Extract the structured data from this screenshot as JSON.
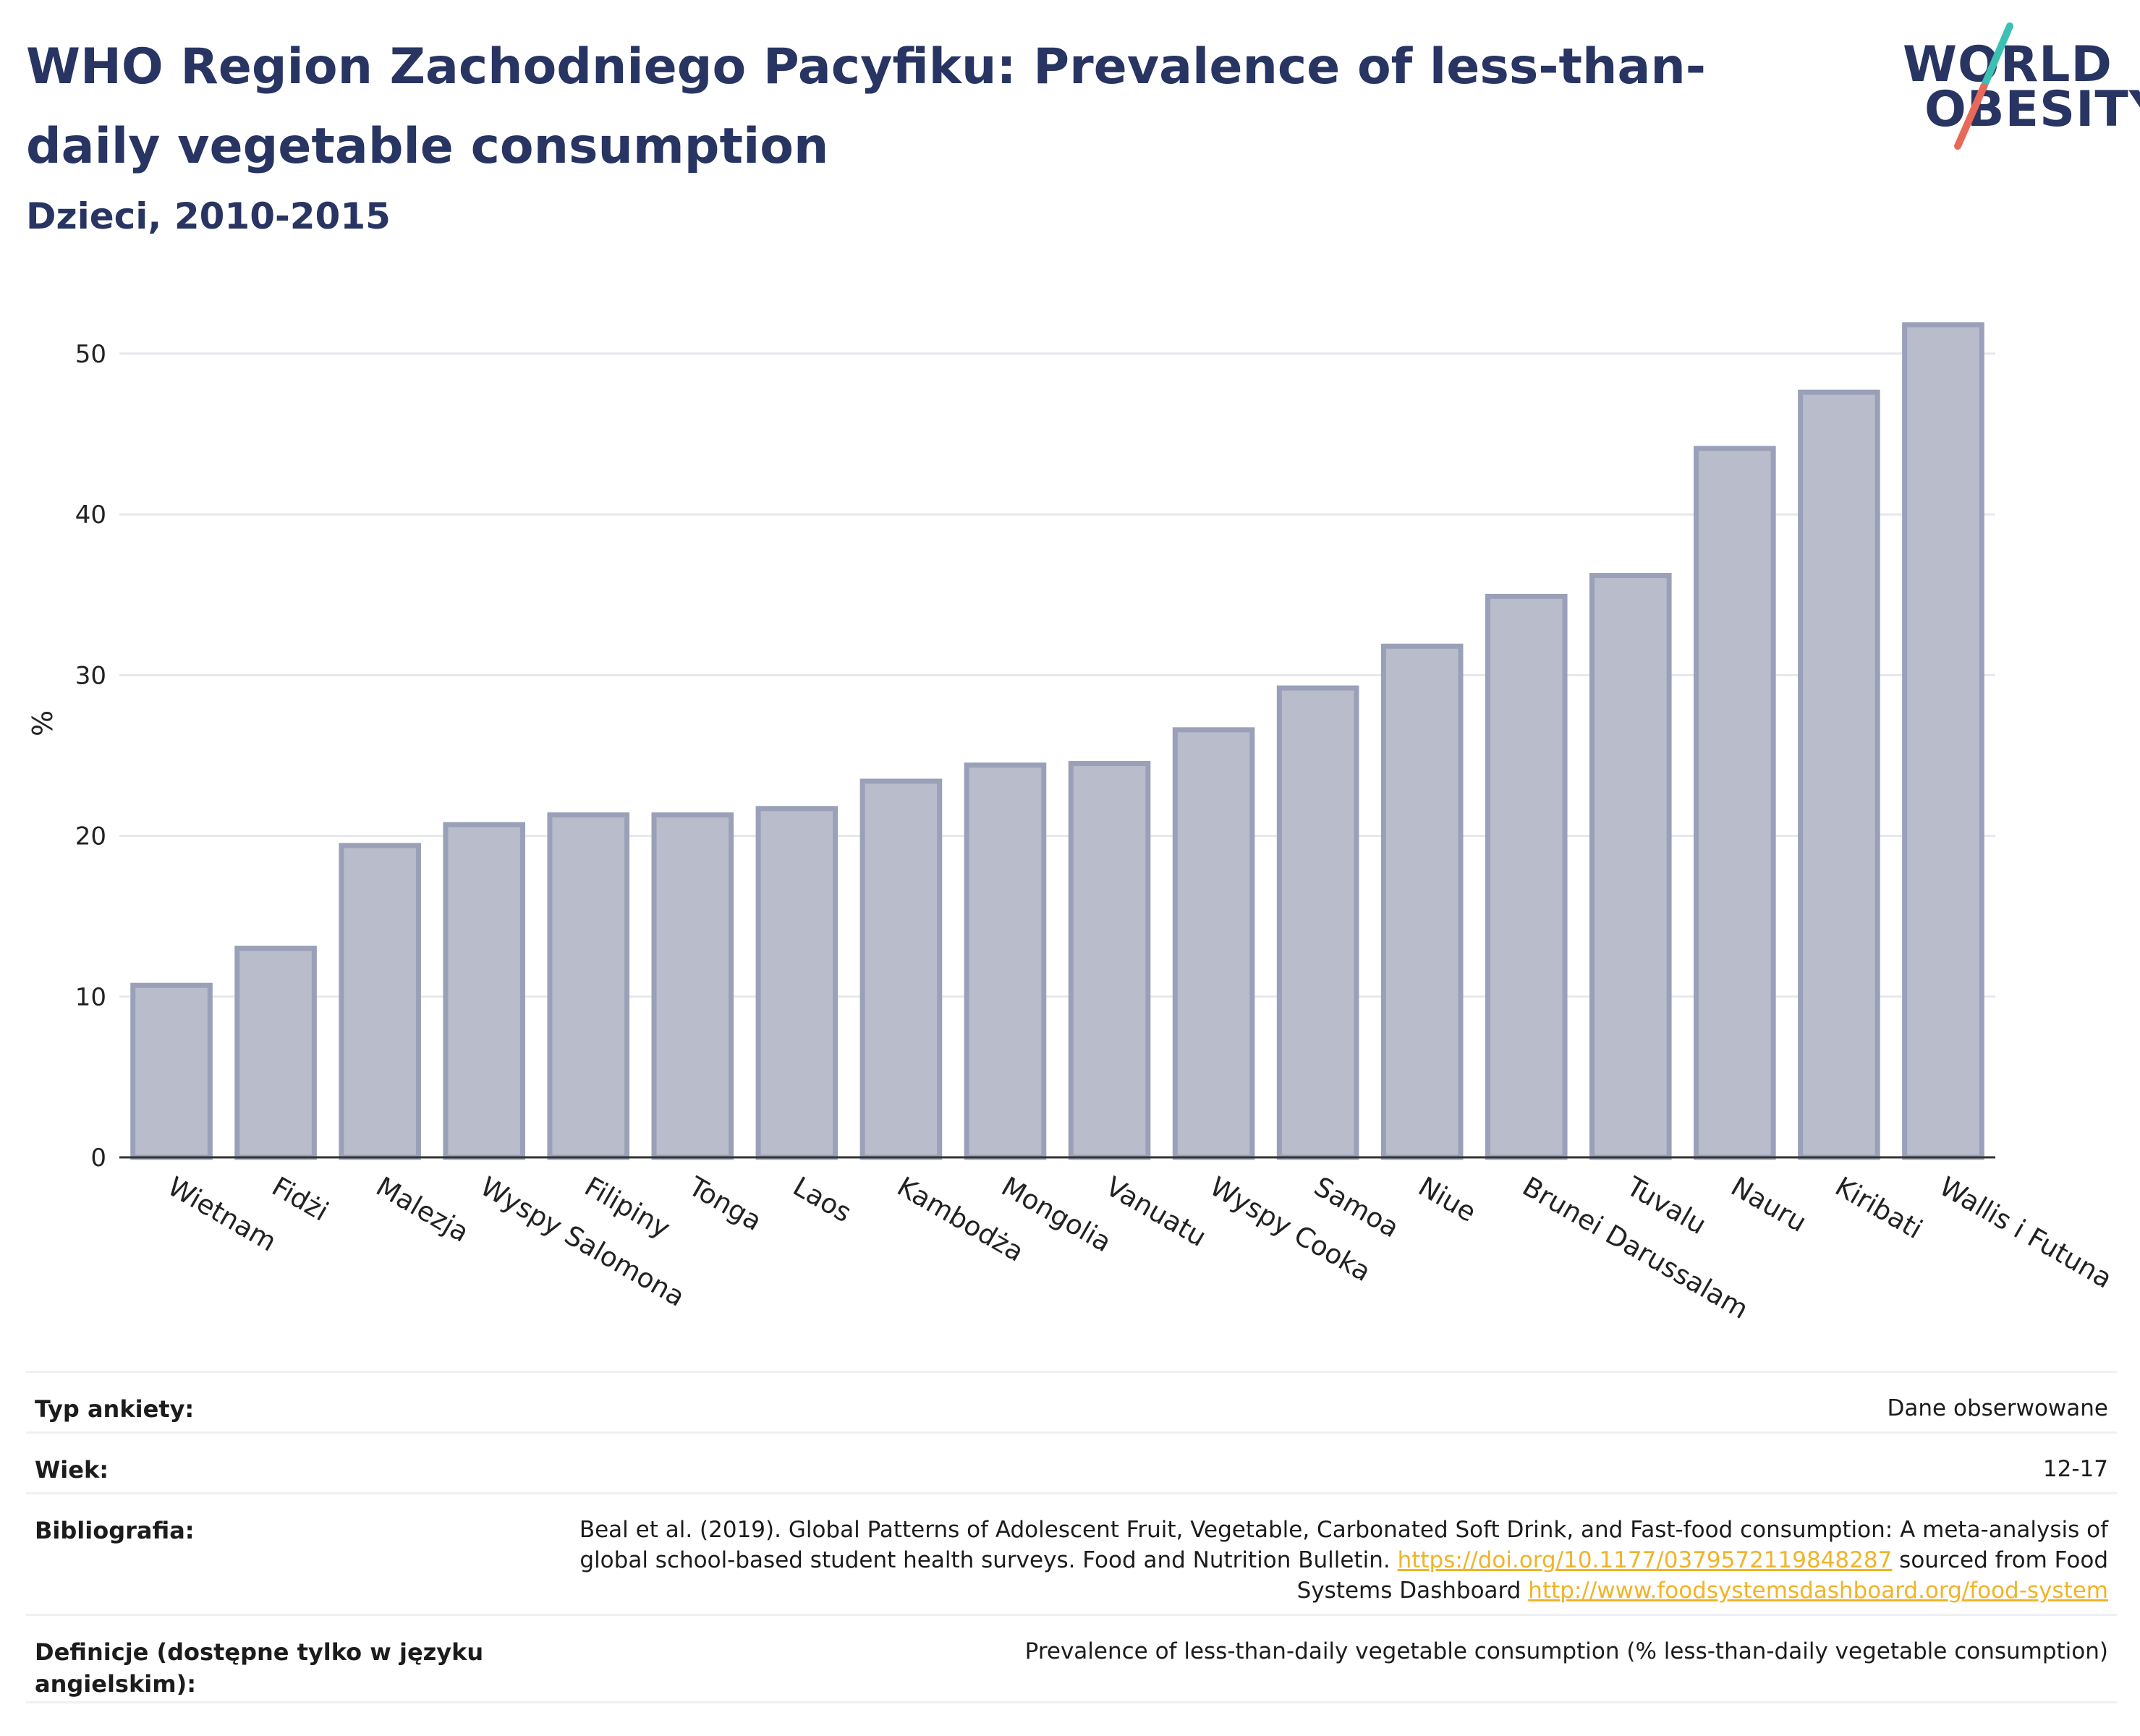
{
  "header": {
    "title": "WHO Region Zachodniego Pacyfiku: Prevalence of less-than-daily vegetable consumption",
    "subtitle": "Dzieci, 2010-2015"
  },
  "logo": {
    "line1": "WORLD",
    "line2": "OBESITY",
    "accent_teal": "#3cc0b4",
    "accent_red": "#e8695a"
  },
  "chart_data": {
    "type": "bar",
    "ylabel": "%",
    "ylim": [
      0,
      54
    ],
    "yticks": [
      0,
      10,
      20,
      30,
      40,
      50
    ],
    "grid": true,
    "bar_color": "#b8bccb",
    "bar_edge_color": "#9aa0b8",
    "categories": [
      "Wietnam",
      "Fidżi",
      "Malezja",
      "Wyspy Salomona",
      "Filipiny",
      "Tonga",
      "Laos",
      "Kambodża",
      "Mongolia",
      "Vanuatu",
      "Wyspy Cooka",
      "Samoa",
      "Niue",
      "Brunei Darussalam",
      "Tuvalu",
      "Nauru",
      "Kiribati",
      "Wallis i Futuna"
    ],
    "values": [
      10.7,
      13.0,
      19.4,
      20.7,
      21.3,
      21.3,
      21.7,
      23.4,
      24.4,
      24.5,
      26.6,
      29.2,
      31.8,
      34.9,
      36.2,
      44.1,
      47.6,
      51.8
    ]
  },
  "meta": [
    {
      "label": "Typ ankiety:",
      "value": "Dane obserwowane"
    },
    {
      "label": "Wiek:",
      "value": "12-17"
    },
    {
      "label": "Bibliografia:",
      "value_pre": "Beal et al. (2019). Global Patterns of Adolescent Fruit, Vegetable, Carbonated Soft Drink, and Fast-food consumption: A meta-analysis of global school-based student health surveys. Food and Nutrition Bulletin. ",
      "link1": "https://doi.org/10.1177/0379572119848287",
      "value_mid": " sourced from Food Systems Dashboard ",
      "link2": "http://www.foodsystemsdashboard.org/food-system"
    },
    {
      "label": "Definicje (dostępne tylko w języku angielskim):",
      "value": "Prevalence of less-than-daily vegetable consumption (% less-than-daily vegetable consumption)"
    }
  ]
}
